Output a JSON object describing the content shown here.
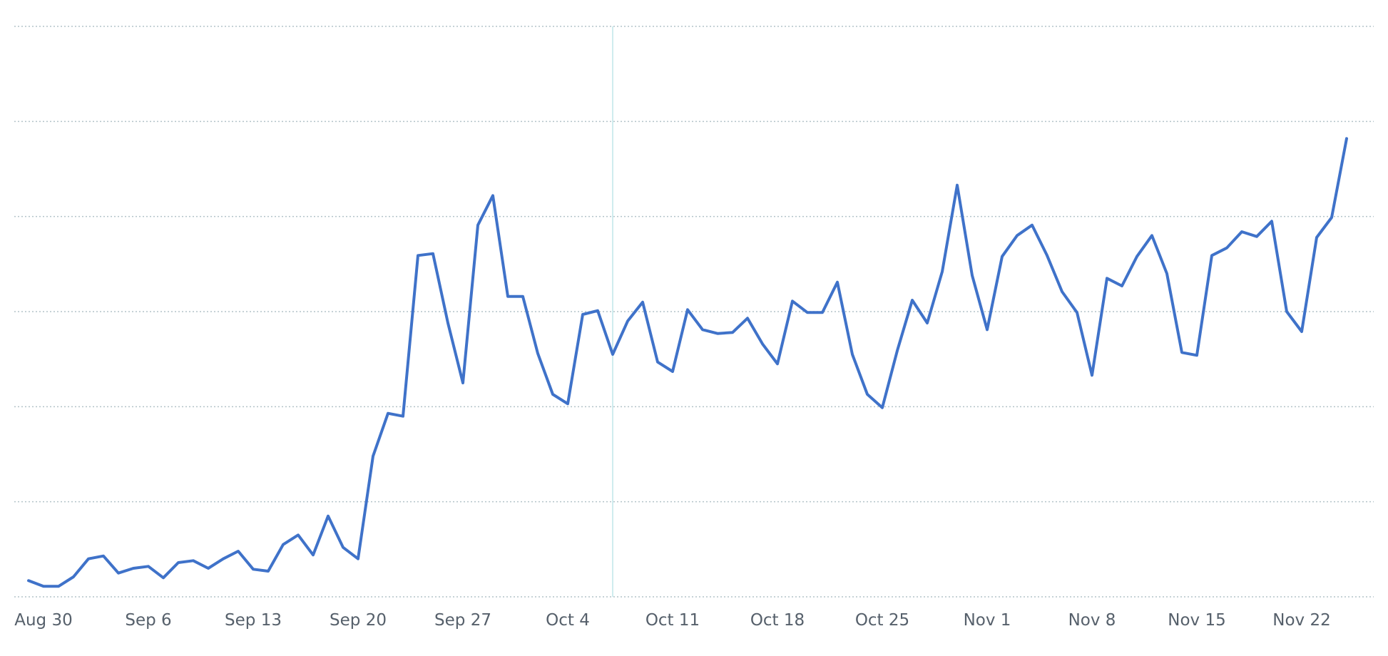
{
  "chart_data": {
    "type": "line",
    "title": "",
    "xlabel": "",
    "ylabel": "",
    "x_start": "Aug 29",
    "ylim": [
      0,
      600
    ],
    "y_gridlines": [
      0,
      100,
      200,
      300,
      400,
      500,
      600
    ],
    "y_tick_labels_visible": false,
    "grid": true,
    "legend": "none",
    "x_ticks": [
      {
        "date": "Aug 30",
        "label": "Aug 30"
      },
      {
        "date": "Sep 6",
        "label": "Sep 6"
      },
      {
        "date": "Sep 13",
        "label": "Sep 13"
      },
      {
        "date": "Sep 20",
        "label": "Sep 20"
      },
      {
        "date": "Sep 27",
        "label": "Sep 27"
      },
      {
        "date": "Oct 4",
        "label": "Oct 4"
      },
      {
        "date": "Oct 11",
        "label": "Oct 11"
      },
      {
        "date": "Oct 18",
        "label": "Oct 18"
      },
      {
        "date": "Oct 25",
        "label": "Oct 25"
      },
      {
        "date": "Nov 1",
        "label": "Nov 1"
      },
      {
        "date": "Nov 8",
        "label": "Nov 8"
      },
      {
        "date": "Nov 15",
        "label": "Nov 15"
      },
      {
        "date": "Nov 22",
        "label": "Nov 22"
      }
    ],
    "marker_date": "Oct 7",
    "series": [
      {
        "color": "#3f72c9",
        "values": [
          17,
          11,
          11,
          21,
          40,
          43,
          25,
          30,
          32,
          20,
          36,
          38,
          30,
          40,
          48,
          29,
          27,
          55,
          65,
          44,
          85,
          52,
          40,
          148,
          193,
          190,
          359,
          361,
          288,
          225,
          391,
          422,
          316,
          316,
          256,
          213,
          203,
          297,
          301,
          255,
          290,
          310,
          247,
          237,
          302,
          281,
          277,
          278,
          293,
          266,
          245,
          311,
          299,
          299,
          331,
          255,
          213,
          199,
          259,
          312,
          288,
          342,
          433,
          338,
          281,
          358,
          380,
          391,
          359,
          321,
          299,
          233,
          335,
          327,
          358,
          380,
          340,
          257,
          254,
          359,
          367,
          384,
          379,
          395,
          300,
          279,
          378,
          399,
          482
        ]
      }
    ],
    "marker_color": "#bfe6e9",
    "grid_color": "#b4c3c9"
  }
}
